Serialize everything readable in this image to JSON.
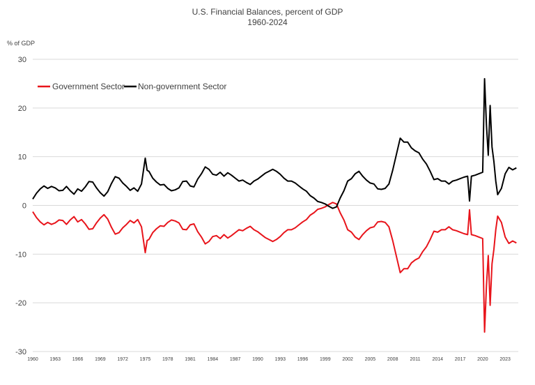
{
  "chart_data": {
    "type": "line",
    "title": "U.S. Financial Balances, percent of GDP",
    "subtitle": "1960-2024",
    "ylabel": "% of GDP",
    "xlabel": "",
    "ylim": [
      -30,
      30
    ],
    "yticks": [
      -30,
      -20,
      -10,
      0,
      10,
      20,
      30
    ],
    "xlim": [
      1960,
      2024.75
    ],
    "xtick_labels": [
      "1960",
      "1963",
      "1966",
      "1969",
      "1972",
      "1975",
      "1978",
      "1981",
      "1984",
      "1987",
      "1990",
      "1993",
      "1996",
      "1999",
      "2002",
      "2005",
      "2008",
      "2011",
      "2014",
      "2017",
      "2020",
      "2023"
    ],
    "grid": "horizontal",
    "legend_position": "top-left",
    "series": [
      {
        "name": "Government Sector",
        "color": "#e8141b",
        "points": [
          [
            1960.0,
            -1.3
          ],
          [
            1960.5,
            -2.5
          ],
          [
            1961.0,
            -3.4
          ],
          [
            1961.5,
            -4.0
          ],
          [
            1962.0,
            -3.5
          ],
          [
            1962.5,
            -3.9
          ],
          [
            1963.0,
            -3.6
          ],
          [
            1963.5,
            -3.0
          ],
          [
            1964.0,
            -3.1
          ],
          [
            1964.5,
            -3.9
          ],
          [
            1965.0,
            -3.0
          ],
          [
            1965.5,
            -2.3
          ],
          [
            1966.0,
            -3.4
          ],
          [
            1966.5,
            -2.9
          ],
          [
            1967.0,
            -3.8
          ],
          [
            1967.5,
            -4.9
          ],
          [
            1968.0,
            -4.8
          ],
          [
            1968.5,
            -3.6
          ],
          [
            1969.0,
            -2.6
          ],
          [
            1969.5,
            -1.9
          ],
          [
            1970.0,
            -2.8
          ],
          [
            1970.5,
            -4.5
          ],
          [
            1971.0,
            -5.9
          ],
          [
            1971.5,
            -5.6
          ],
          [
            1972.0,
            -4.6
          ],
          [
            1972.5,
            -3.9
          ],
          [
            1973.0,
            -3.1
          ],
          [
            1973.5,
            -3.6
          ],
          [
            1974.0,
            -2.9
          ],
          [
            1974.5,
            -4.4
          ],
          [
            1975.0,
            -9.7
          ],
          [
            1975.25,
            -7.2
          ],
          [
            1975.5,
            -7.0
          ],
          [
            1976.0,
            -5.6
          ],
          [
            1976.5,
            -4.8
          ],
          [
            1977.0,
            -4.2
          ],
          [
            1977.5,
            -4.3
          ],
          [
            1978.0,
            -3.5
          ],
          [
            1978.5,
            -3.0
          ],
          [
            1979.0,
            -3.2
          ],
          [
            1979.5,
            -3.6
          ],
          [
            1980.0,
            -4.9
          ],
          [
            1980.5,
            -5.0
          ],
          [
            1981.0,
            -4.0
          ],
          [
            1981.5,
            -3.8
          ],
          [
            1982.0,
            -5.4
          ],
          [
            1982.5,
            -6.5
          ],
          [
            1983.0,
            -7.9
          ],
          [
            1983.5,
            -7.4
          ],
          [
            1984.0,
            -6.4
          ],
          [
            1984.5,
            -6.2
          ],
          [
            1985.0,
            -6.8
          ],
          [
            1985.5,
            -6.0
          ],
          [
            1986.0,
            -6.7
          ],
          [
            1986.5,
            -6.2
          ],
          [
            1987.0,
            -5.6
          ],
          [
            1987.5,
            -5.0
          ],
          [
            1988.0,
            -5.2
          ],
          [
            1988.5,
            -4.7
          ],
          [
            1989.0,
            -4.3
          ],
          [
            1989.5,
            -5.0
          ],
          [
            1990.0,
            -5.4
          ],
          [
            1990.5,
            -6.0
          ],
          [
            1991.0,
            -6.6
          ],
          [
            1991.5,
            -7.0
          ],
          [
            1992.0,
            -7.4
          ],
          [
            1992.5,
            -7.0
          ],
          [
            1993.0,
            -6.4
          ],
          [
            1993.5,
            -5.6
          ],
          [
            1994.0,
            -5.0
          ],
          [
            1994.5,
            -5.0
          ],
          [
            1995.0,
            -4.6
          ],
          [
            1995.5,
            -4.0
          ],
          [
            1996.0,
            -3.4
          ],
          [
            1996.5,
            -2.9
          ],
          [
            1997.0,
            -2.0
          ],
          [
            1997.5,
            -1.5
          ],
          [
            1998.0,
            -0.8
          ],
          [
            1998.5,
            -0.6
          ],
          [
            1999.0,
            -0.3
          ],
          [
            1999.5,
            0.2
          ],
          [
            2000.0,
            0.6
          ],
          [
            2000.5,
            0.3
          ],
          [
            2001.0,
            -1.5
          ],
          [
            2001.5,
            -3.0
          ],
          [
            2002.0,
            -5.0
          ],
          [
            2002.5,
            -5.5
          ],
          [
            2003.0,
            -6.5
          ],
          [
            2003.5,
            -7.0
          ],
          [
            2004.0,
            -6.0
          ],
          [
            2004.5,
            -5.2
          ],
          [
            2005.0,
            -4.6
          ],
          [
            2005.5,
            -4.4
          ],
          [
            2006.0,
            -3.4
          ],
          [
            2006.5,
            -3.3
          ],
          [
            2007.0,
            -3.5
          ],
          [
            2007.5,
            -4.4
          ],
          [
            2008.0,
            -7.2
          ],
          [
            2008.5,
            -10.5
          ],
          [
            2009.0,
            -13.8
          ],
          [
            2009.5,
            -13.0
          ],
          [
            2010.0,
            -13.0
          ],
          [
            2010.5,
            -11.8
          ],
          [
            2011.0,
            -11.2
          ],
          [
            2011.5,
            -10.8
          ],
          [
            2012.0,
            -9.5
          ],
          [
            2012.5,
            -8.5
          ],
          [
            2013.0,
            -7.0
          ],
          [
            2013.5,
            -5.3
          ],
          [
            2014.0,
            -5.5
          ],
          [
            2014.5,
            -5.0
          ],
          [
            2015.0,
            -5.0
          ],
          [
            2015.5,
            -4.4
          ],
          [
            2016.0,
            -5.0
          ],
          [
            2016.5,
            -5.2
          ],
          [
            2017.0,
            -5.5
          ],
          [
            2017.5,
            -5.8
          ],
          [
            2018.0,
            -6.0
          ],
          [
            2018.25,
            -0.9
          ],
          [
            2018.5,
            -6.0
          ],
          [
            2019.0,
            -6.2
          ],
          [
            2019.5,
            -6.5
          ],
          [
            2020.0,
            -6.8
          ],
          [
            2020.25,
            -26.0
          ],
          [
            2020.5,
            -16.5
          ],
          [
            2020.75,
            -10.3
          ],
          [
            2021.0,
            -20.5
          ],
          [
            2021.25,
            -12.0
          ],
          [
            2021.5,
            -9.0
          ],
          [
            2021.75,
            -5.0
          ],
          [
            2022.0,
            -2.2
          ],
          [
            2022.5,
            -3.5
          ],
          [
            2023.0,
            -6.5
          ],
          [
            2023.5,
            -7.8
          ],
          [
            2024.0,
            -7.3
          ],
          [
            2024.5,
            -7.7
          ]
        ]
      },
      {
        "name": "Non-government Sector",
        "color": "#000000",
        "points": [
          [
            1960.0,
            1.3
          ],
          [
            1960.5,
            2.5
          ],
          [
            1961.0,
            3.4
          ],
          [
            1961.5,
            4.0
          ],
          [
            1962.0,
            3.5
          ],
          [
            1962.5,
            3.9
          ],
          [
            1963.0,
            3.6
          ],
          [
            1963.5,
            3.0
          ],
          [
            1964.0,
            3.1
          ],
          [
            1964.5,
            3.9
          ],
          [
            1965.0,
            3.0
          ],
          [
            1965.5,
            2.3
          ],
          [
            1966.0,
            3.4
          ],
          [
            1966.5,
            2.9
          ],
          [
            1967.0,
            3.8
          ],
          [
            1967.5,
            4.9
          ],
          [
            1968.0,
            4.8
          ],
          [
            1968.5,
            3.6
          ],
          [
            1969.0,
            2.6
          ],
          [
            1969.5,
            1.9
          ],
          [
            1970.0,
            2.8
          ],
          [
            1970.5,
            4.5
          ],
          [
            1971.0,
            5.9
          ],
          [
            1971.5,
            5.6
          ],
          [
            1972.0,
            4.6
          ],
          [
            1972.5,
            3.9
          ],
          [
            1973.0,
            3.1
          ],
          [
            1973.5,
            3.6
          ],
          [
            1974.0,
            2.9
          ],
          [
            1974.5,
            4.4
          ],
          [
            1975.0,
            9.7
          ],
          [
            1975.25,
            7.2
          ],
          [
            1975.5,
            7.0
          ],
          [
            1976.0,
            5.6
          ],
          [
            1976.5,
            4.8
          ],
          [
            1977.0,
            4.2
          ],
          [
            1977.5,
            4.3
          ],
          [
            1978.0,
            3.5
          ],
          [
            1978.5,
            3.0
          ],
          [
            1979.0,
            3.2
          ],
          [
            1979.5,
            3.6
          ],
          [
            1980.0,
            4.9
          ],
          [
            1980.5,
            5.0
          ],
          [
            1981.0,
            4.0
          ],
          [
            1981.5,
            3.8
          ],
          [
            1982.0,
            5.4
          ],
          [
            1982.5,
            6.5
          ],
          [
            1983.0,
            7.9
          ],
          [
            1983.5,
            7.4
          ],
          [
            1984.0,
            6.4
          ],
          [
            1984.5,
            6.2
          ],
          [
            1985.0,
            6.8
          ],
          [
            1985.5,
            6.0
          ],
          [
            1986.0,
            6.7
          ],
          [
            1986.5,
            6.2
          ],
          [
            1987.0,
            5.6
          ],
          [
            1987.5,
            5.0
          ],
          [
            1988.0,
            5.2
          ],
          [
            1988.5,
            4.7
          ],
          [
            1989.0,
            4.3
          ],
          [
            1989.5,
            5.0
          ],
          [
            1990.0,
            5.4
          ],
          [
            1990.5,
            6.0
          ],
          [
            1991.0,
            6.6
          ],
          [
            1991.5,
            7.0
          ],
          [
            1992.0,
            7.4
          ],
          [
            1992.5,
            7.0
          ],
          [
            1993.0,
            6.4
          ],
          [
            1993.5,
            5.6
          ],
          [
            1994.0,
            5.0
          ],
          [
            1994.5,
            5.0
          ],
          [
            1995.0,
            4.6
          ],
          [
            1995.5,
            4.0
          ],
          [
            1996.0,
            3.4
          ],
          [
            1996.5,
            2.9
          ],
          [
            1997.0,
            2.0
          ],
          [
            1997.5,
            1.5
          ],
          [
            1998.0,
            0.8
          ],
          [
            1998.5,
            0.6
          ],
          [
            1999.0,
            0.3
          ],
          [
            1999.5,
            -0.2
          ],
          [
            2000.0,
            -0.6
          ],
          [
            2000.5,
            -0.3
          ],
          [
            2001.0,
            1.5
          ],
          [
            2001.5,
            3.0
          ],
          [
            2002.0,
            5.0
          ],
          [
            2002.5,
            5.5
          ],
          [
            2003.0,
            6.5
          ],
          [
            2003.5,
            7.0
          ],
          [
            2004.0,
            6.0
          ],
          [
            2004.5,
            5.2
          ],
          [
            2005.0,
            4.6
          ],
          [
            2005.5,
            4.4
          ],
          [
            2006.0,
            3.4
          ],
          [
            2006.5,
            3.3
          ],
          [
            2007.0,
            3.5
          ],
          [
            2007.5,
            4.4
          ],
          [
            2008.0,
            7.2
          ],
          [
            2008.5,
            10.5
          ],
          [
            2009.0,
            13.8
          ],
          [
            2009.5,
            13.0
          ],
          [
            2010.0,
            13.0
          ],
          [
            2010.5,
            11.8
          ],
          [
            2011.0,
            11.2
          ],
          [
            2011.5,
            10.8
          ],
          [
            2012.0,
            9.5
          ],
          [
            2012.5,
            8.5
          ],
          [
            2013.0,
            7.0
          ],
          [
            2013.5,
            5.3
          ],
          [
            2014.0,
            5.5
          ],
          [
            2014.5,
            5.0
          ],
          [
            2015.0,
            5.0
          ],
          [
            2015.5,
            4.4
          ],
          [
            2016.0,
            5.0
          ],
          [
            2016.5,
            5.2
          ],
          [
            2017.0,
            5.5
          ],
          [
            2017.5,
            5.8
          ],
          [
            2018.0,
            6.0
          ],
          [
            2018.25,
            0.9
          ],
          [
            2018.5,
            6.0
          ],
          [
            2019.0,
            6.2
          ],
          [
            2019.5,
            6.5
          ],
          [
            2020.0,
            6.8
          ],
          [
            2020.25,
            26.0
          ],
          [
            2020.5,
            16.5
          ],
          [
            2020.75,
            10.3
          ],
          [
            2021.0,
            20.5
          ],
          [
            2021.25,
            12.0
          ],
          [
            2021.5,
            9.0
          ],
          [
            2021.75,
            5.0
          ],
          [
            2022.0,
            2.2
          ],
          [
            2022.5,
            3.5
          ],
          [
            2023.0,
            6.5
          ],
          [
            2023.5,
            7.8
          ],
          [
            2024.0,
            7.3
          ],
          [
            2024.5,
            7.7
          ]
        ]
      }
    ]
  }
}
